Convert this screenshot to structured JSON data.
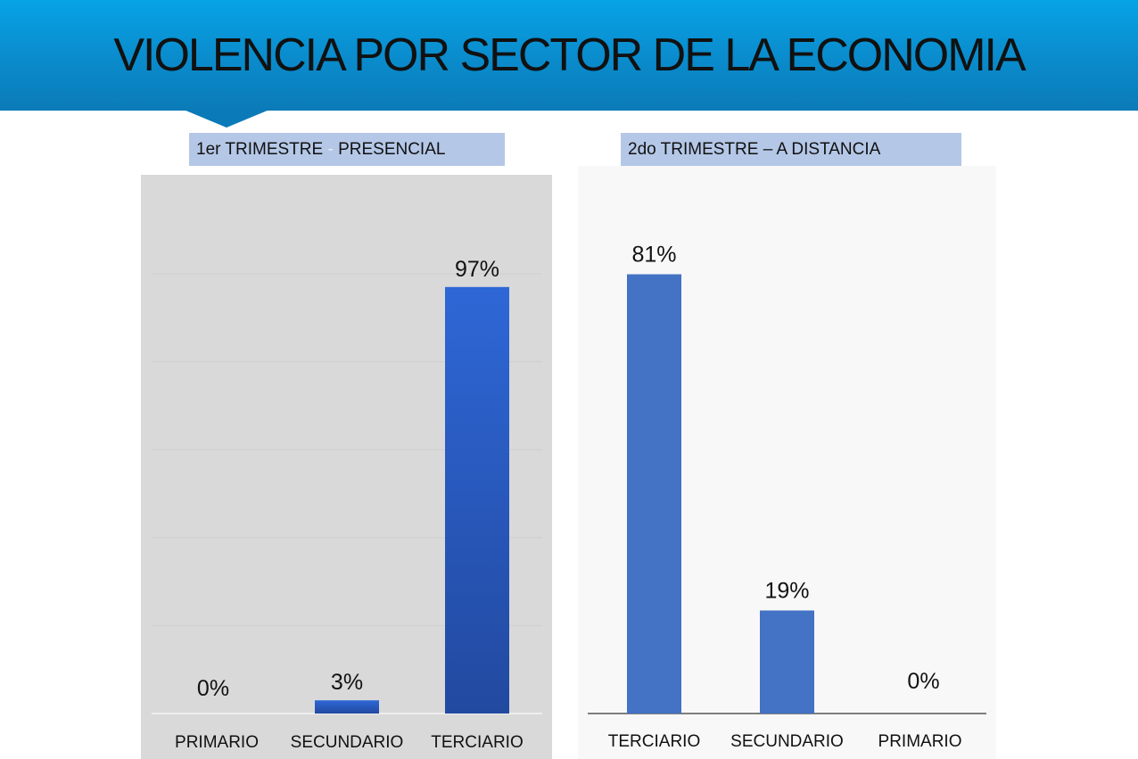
{
  "header": {
    "title": "VIOLENCIA POR SECTOR DE LA ECONOMIA"
  },
  "tabs": {
    "first": {
      "part1": "1er TRIMESTRE ",
      "sep": "-",
      "part2": " PRESENCIAL"
    },
    "second": {
      "label": "2do TRIMESTRE – A DISTANCIA"
    }
  },
  "chart_data": [
    {
      "type": "bar",
      "title": "1er TRIMESTRE - PRESENCIAL",
      "categories": [
        "PRIMARIO",
        "SECUNDARIO",
        "TERCIARIO"
      ],
      "values": [
        0,
        3,
        97
      ],
      "data_labels": [
        "0%",
        "3%",
        "97%"
      ],
      "ylim": [
        0,
        100
      ],
      "grid": true,
      "bar_color": "#2a5cc4"
    },
    {
      "type": "bar",
      "title": "2do TRIMESTRE – A DISTANCIA",
      "categories": [
        "TERCIARIO",
        "SECUNDARIO",
        "PRIMARIO"
      ],
      "values": [
        81,
        19,
        0
      ],
      "data_labels": [
        "81%",
        "19%",
        "0%"
      ],
      "ylim": [
        0,
        100
      ],
      "grid": false,
      "bar_color": "#4472c4"
    }
  ]
}
